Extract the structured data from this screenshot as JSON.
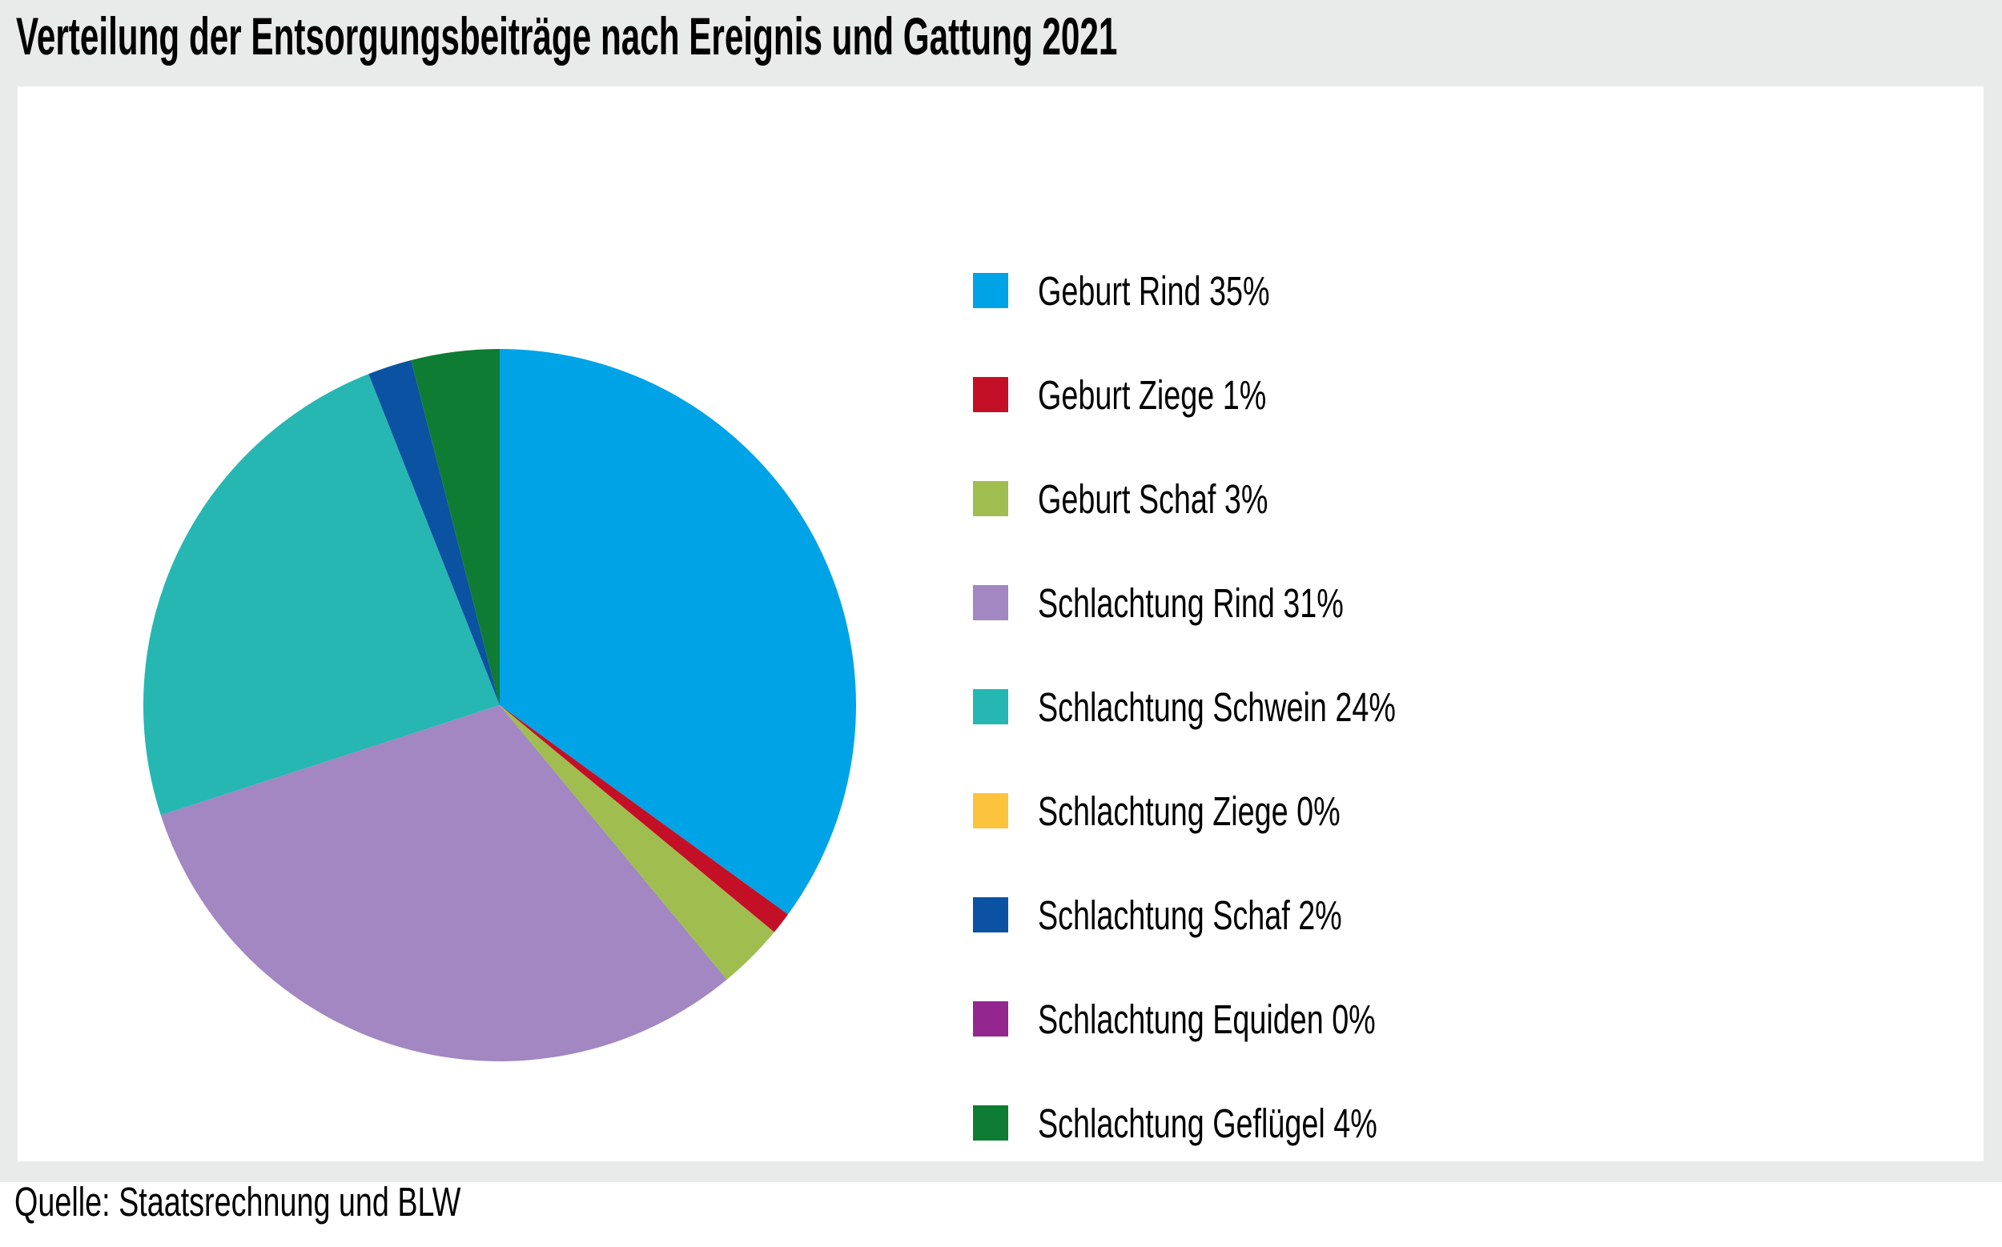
{
  "title": "Verteilung der Entsorgungsbeiträge nach Ereignis und Gattung 2021",
  "source": "Quelle: Staatsrechnung und BLW",
  "colors": {
    "page_background": "#FFFFFF",
    "chart_band_background": "#E9EAEA",
    "panel_background": "#FFFFFF",
    "text": "#000000"
  },
  "chart_data": {
    "type": "pie",
    "title": "Verteilung der Entsorgungsbeiträge nach Ereignis und Gattung 2021",
    "start_angle_deg": 0,
    "direction": "clockwise",
    "legend_position": "right",
    "grid": false,
    "segments": [
      {
        "label": "Geburt Rind",
        "value_pct": 35,
        "legend_text": "Geburt Rind 35%",
        "color": "#00A3E6"
      },
      {
        "label": "Geburt Ziege",
        "value_pct": 1,
        "legend_text": "Geburt Ziege 1%",
        "color": "#C31026"
      },
      {
        "label": "Geburt Schaf",
        "value_pct": 3,
        "legend_text": "Geburt Schaf 3%",
        "color": "#A0BE50"
      },
      {
        "label": "Schlachtung Rind",
        "value_pct": 31,
        "legend_text": "Schlachtung Rind 31%",
        "color": "#A287C2"
      },
      {
        "label": "Schlachtung Schwein",
        "value_pct": 24,
        "legend_text": "Schlachtung Schwein 24%",
        "color": "#26B7B3"
      },
      {
        "label": "Schlachtung Ziege",
        "value_pct": 0,
        "legend_text": "Schlachtung Ziege 0%",
        "color": "#FCC33C"
      },
      {
        "label": "Schlachtung Schaf",
        "value_pct": 2,
        "legend_text": "Schlachtung Schaf 2%",
        "color": "#0C52A2"
      },
      {
        "label": "Schlachtung Equiden",
        "value_pct": 0,
        "legend_text": "Schlachtung Equiden 0%",
        "color": "#93278F"
      },
      {
        "label": "Schlachtung Geflügel",
        "value_pct": 4,
        "legend_text": "Schlachtung Geflügel 4%",
        "color": "#0F7C33"
      }
    ]
  }
}
